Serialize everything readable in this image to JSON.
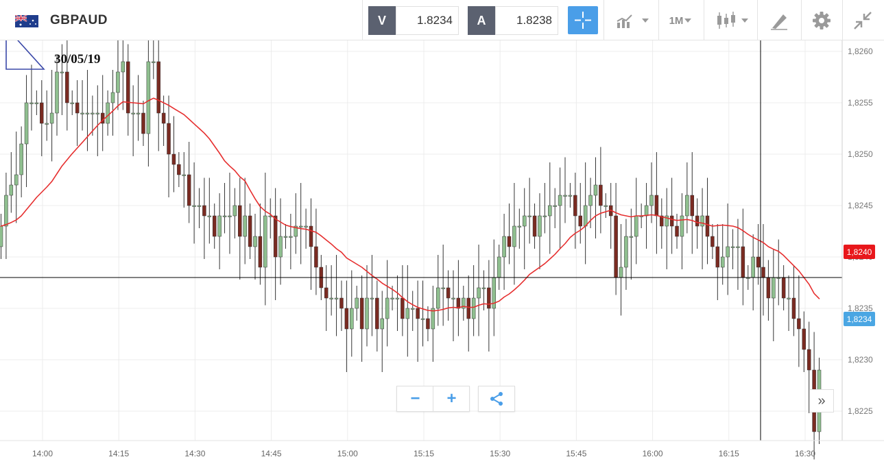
{
  "header": {
    "symbol": "GBPAUD",
    "flag_icon": "gb-au-flag-icon",
    "sell": {
      "label": "V",
      "price": "1.8234"
    },
    "buy": {
      "label": "A",
      "price": "1.8238"
    },
    "crosshair_icon": "crosshair-icon",
    "chart_type_icon": "line-chart-icon",
    "timeframe": "1M",
    "candle_icon": "candlestick-icon",
    "draw_icon": "drawing-tools-icon",
    "settings_icon": "gear-icon",
    "collapse_icon": "collapse-icon"
  },
  "annotation": {
    "date": "30/05/19"
  },
  "controls": {
    "zoom_out": "−",
    "zoom_in": "+",
    "share_icon": "share-icon",
    "scroll_end": "»"
  },
  "chart_data": {
    "type": "candlestick",
    "x_ticks": [
      "14:00",
      "14:15",
      "14:30",
      "14:45",
      "15:00",
      "15:15",
      "15:30",
      "15:45",
      "16:00",
      "16:15",
      "16:30"
    ],
    "y_ticks": [
      "1,8260",
      "1,8255",
      "1,8250",
      "1,8245",
      "1,8240",
      "1,8235",
      "1,8230",
      "1,8225"
    ],
    "ylim": [
      1.8222,
      1.82615
    ],
    "grid": true,
    "current_price_label": "1,8234",
    "ma_price_label": "1,8240",
    "colors": {
      "up": "#8fbf8f",
      "down": "#7a2b22",
      "ma": "#e62e2e",
      "ma_tag": "#e8171b",
      "price_tag": "#4aa6e3",
      "grid": "#ececec"
    },
    "candle_closes": [
      1.8243,
      1.8246,
      1.8247,
      1.8248,
      1.8251,
      1.8255,
      1.8255,
      1.8255,
      1.8253,
      1.8253,
      1.8254,
      1.8258,
      1.8258,
      1.8255,
      1.8255,
      1.8254,
      1.8254,
      1.8254,
      1.8254,
      1.8254,
      1.8253,
      1.8255,
      1.8256,
      1.8258,
      1.8259,
      1.8254,
      1.8254,
      1.8254,
      1.8252,
      1.8259,
      1.8259,
      1.8254,
      1.8253,
      1.825,
      1.8249,
      1.8248,
      1.8248,
      1.8245,
      1.8245,
      1.8245,
      1.8244,
      1.8244,
      1.8242,
      1.8244,
      1.8244,
      1.8244,
      1.8245,
      1.8242,
      1.8244,
      1.8241,
      1.8242,
      1.8239,
      1.8244,
      1.8244,
      1.824,
      1.8242,
      1.8242,
      1.8242,
      1.8243,
      1.8243,
      1.8243,
      1.8241,
      1.8239,
      1.8237,
      1.8236,
      1.8236,
      1.8236,
      1.8235,
      1.8233,
      1.8235,
      1.8236,
      1.8233,
      1.8236,
      1.8236,
      1.8233,
      1.8234,
      1.8236,
      1.8236,
      1.8236,
      1.8234,
      1.8235,
      1.8235,
      1.8234,
      1.8234,
      1.8233,
      1.8235,
      1.8237,
      1.8237,
      1.8236,
      1.8236,
      1.8235,
      1.8236,
      1.8234,
      1.8236,
      1.8237,
      1.8237,
      1.8235,
      1.8238,
      1.824,
      1.8242,
      1.8241,
      1.8243,
      1.8243,
      1.8244,
      1.8244,
      1.8242,
      1.8244,
      1.8244,
      1.8245,
      1.8245,
      1.8246,
      1.8246,
      1.8246,
      1.8244,
      1.8243,
      1.8245,
      1.8246,
      1.8247,
      1.8245,
      1.8245,
      1.8244,
      1.8238,
      1.8239,
      1.8242,
      1.8242,
      1.8244,
      1.8244,
      1.8245,
      1.8246,
      1.8244,
      1.8243,
      1.8244,
      1.8243,
      1.8242,
      1.8244,
      1.8246,
      1.8244,
      1.8243,
      1.8244,
      1.8242,
      1.8241,
      1.8239,
      1.824,
      1.8241,
      1.8241,
      1.8241,
      1.8238,
      1.8238,
      1.824,
      1.8239,
      1.8238,
      1.8236,
      1.8238,
      1.8238,
      1.8236,
      1.8236,
      1.8234,
      1.8233,
      1.8231,
      1.8229,
      1.8223,
      1.8229
    ]
  }
}
